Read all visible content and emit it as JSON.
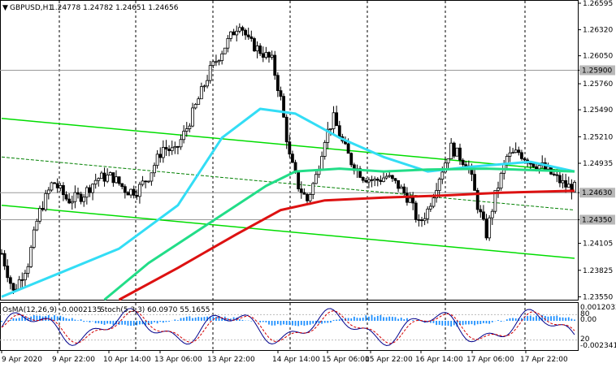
{
  "header": {
    "symbol": "GBPUSD,H1",
    "ohlc": "1.24778 1.24782 1.24651 1.24656"
  },
  "indicator_header": {
    "osma": "OsMA(12,26,9) -0.0002135",
    "stoch": "Stoch(5,3,3) 60.0970 55.1655"
  },
  "colors": {
    "background": "#ffffff",
    "candle": "#000000",
    "channel": "#00dd00",
    "mid_line": "#008000",
    "ma_fast": "#33ddf5",
    "ma_mid": "#22dd88",
    "ma_slow": "#dd1111",
    "grid": "#000000",
    "osma_histogram": "#1e90ff",
    "stoch_main": "#00008b",
    "stoch_signal": "#d40000"
  },
  "chart_data": {
    "type": "candlestick",
    "y_axis_labels": [
      "1.26595",
      "1.26320",
      "1.26050",
      "1.25900",
      "1.25760",
      "1.25490",
      "1.25210",
      "1.24935",
      "1.24630",
      "1.24350",
      "1.24105",
      "1.23825",
      "1.23550"
    ],
    "highlighted_levels": [
      {
        "value": "1.25900",
        "style": "gray-box"
      },
      {
        "value": "1.24630",
        "style": "gray-box"
      },
      {
        "value": "1.24350",
        "style": "gray-box"
      }
    ],
    "x_axis_labels": [
      "9 Apr 2020",
      "9 Apr 22:00",
      "10 Apr 14:00",
      "13 Apr 06:00",
      "13 Apr 22:00",
      "14 Apr 14:00",
      "15 Apr 06:00",
      "15 Apr 22:00",
      "16 Apr 14:00",
      "17 Apr 06:00",
      "17 Apr 22:00"
    ],
    "ylim": [
      1.2352,
      1.2662
    ],
    "series": [
      {
        "name": "price",
        "approx_close_path": [
          [
            0,
            1.24
          ],
          [
            8,
            1.236
          ],
          [
            18,
            1.239
          ],
          [
            25,
            1.244
          ],
          [
            35,
            1.2475
          ],
          [
            45,
            1.2455
          ],
          [
            55,
            1.246
          ],
          [
            65,
            1.2478
          ],
          [
            75,
            1.248
          ],
          [
            85,
            1.2465
          ],
          [
            92,
            1.2465
          ],
          [
            100,
            1.248
          ],
          [
            110,
            1.251
          ],
          [
            118,
            1.2505
          ],
          [
            126,
            1.253
          ],
          [
            134,
            1.256
          ],
          [
            142,
            1.259
          ],
          [
            150,
            1.261
          ],
          [
            158,
            1.263
          ],
          [
            162,
            1.264
          ],
          [
            168,
            1.262
          ],
          [
            176,
            1.261
          ],
          [
            184,
            1.26
          ],
          [
            190,
            1.256
          ],
          [
            196,
            1.25
          ],
          [
            202,
            1.247
          ],
          [
            208,
            1.2455
          ],
          [
            214,
            1.248
          ],
          [
            220,
            1.252
          ],
          [
            226,
            1.254
          ],
          [
            232,
            1.2515
          ],
          [
            238,
            1.2495
          ],
          [
            246,
            1.248
          ],
          [
            254,
            1.2475
          ],
          [
            262,
            1.248
          ],
          [
            270,
            1.247
          ],
          [
            278,
            1.2455
          ],
          [
            284,
            1.243
          ],
          [
            290,
            1.2445
          ],
          [
            298,
            1.248
          ],
          [
            306,
            1.251
          ],
          [
            312,
            1.25
          ],
          [
            318,
            1.249
          ],
          [
            324,
            1.245
          ],
          [
            330,
            1.242
          ],
          [
            336,
            1.246
          ],
          [
            344,
            1.25
          ],
          [
            352,
            1.2505
          ],
          [
            360,
            1.2495
          ],
          [
            368,
            1.249
          ],
          [
            376,
            1.248
          ],
          [
            384,
            1.247
          ],
          [
            390,
            1.2468
          ]
        ]
      }
    ],
    "overlays": {
      "ma_fast_path": [
        [
          0,
          1.2355
        ],
        [
          40,
          1.238
        ],
        [
          80,
          1.2405
        ],
        [
          120,
          1.245
        ],
        [
          150,
          1.252
        ],
        [
          176,
          1.255
        ],
        [
          200,
          1.2545
        ],
        [
          230,
          1.252
        ],
        [
          260,
          1.25
        ],
        [
          290,
          1.2485
        ],
        [
          320,
          1.249
        ],
        [
          360,
          1.2495
        ],
        [
          390,
          1.2485
        ]
      ],
      "ma_mid_path": [
        [
          70,
          1.2352
        ],
        [
          100,
          1.239
        ],
        [
          140,
          1.243
        ],
        [
          180,
          1.247
        ],
        [
          200,
          1.2485
        ],
        [
          230,
          1.2488
        ],
        [
          260,
          1.2485
        ],
        [
          290,
          1.2487
        ],
        [
          330,
          1.2488
        ],
        [
          390,
          1.2485
        ]
      ],
      "ma_slow_path": [
        [
          80,
          1.2352
        ],
        [
          120,
          1.2385
        ],
        [
          160,
          1.242
        ],
        [
          190,
          1.2445
        ],
        [
          220,
          1.2455
        ],
        [
          260,
          1.2458
        ],
        [
          300,
          1.246
        ],
        [
          340,
          1.2463
        ],
        [
          390,
          1.2465
        ]
      ],
      "channel_upper": [
        [
          0,
          1.254
        ],
        [
          390,
          1.2485
        ]
      ],
      "channel_lower": [
        [
          0,
          1.245
        ],
        [
          390,
          1.2395
        ]
      ],
      "channel_mid": [
        [
          0,
          1.25
        ],
        [
          390,
          1.2445
        ]
      ]
    },
    "lower_pane": {
      "right_labels": [
        "0.0012032",
        "80",
        "0.00",
        "20",
        "-0.002341"
      ],
      "stoch_levels": [
        80,
        20
      ]
    }
  }
}
